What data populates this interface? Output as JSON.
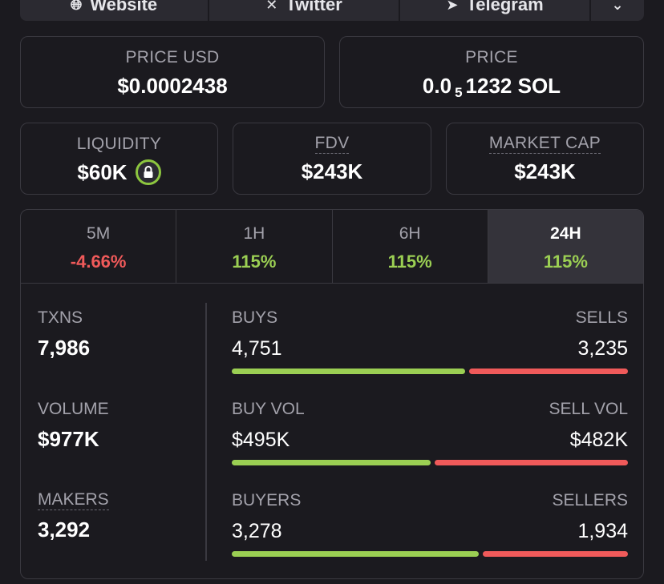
{
  "links": {
    "website": "Website",
    "twitter": "Twitter",
    "telegram": "Telegram"
  },
  "price_usd": {
    "label": "PRICE USD",
    "value": "$0.0002438"
  },
  "price_sol": {
    "label": "PRICE",
    "prefix": "0.0",
    "subscript": "5",
    "suffix": "1232 SOL"
  },
  "liquidity": {
    "label": "LIQUIDITY",
    "value": "$60K"
  },
  "fdv": {
    "label": "FDV",
    "value": "$243K"
  },
  "market_cap": {
    "label": "MARKET CAP",
    "value": "$243K"
  },
  "timeframes": [
    {
      "label": "5M",
      "change": "-4.66%"
    },
    {
      "label": "1H",
      "change": "115%"
    },
    {
      "label": "6H",
      "change": "115%"
    },
    {
      "label": "24H",
      "change": "115%"
    }
  ],
  "stats": {
    "txns": {
      "label": "TXNS",
      "value": "7,986"
    },
    "volume": {
      "label": "VOLUME",
      "value": "$977K"
    },
    "makers": {
      "label": "MAKERS",
      "value": "3,292"
    }
  },
  "breakdown": {
    "txns": {
      "buy_label": "BUYS",
      "buy_value": "4,751",
      "sell_label": "SELLS",
      "sell_value": "3,235",
      "buy_share": 0.595
    },
    "volume": {
      "buy_label": "BUY VOL",
      "buy_value": "$495K",
      "sell_label": "SELL VOL",
      "sell_value": "$482K",
      "buy_share": 0.507
    },
    "makers": {
      "buy_label": "BUYERS",
      "buy_value": "3,278",
      "sell_label": "SELLERS",
      "sell_value": "1,934",
      "buy_share": 0.629
    }
  },
  "colors": {
    "positive": "#9bcf53",
    "negative": "#f05a5a",
    "background": "#1b1a1f"
  }
}
